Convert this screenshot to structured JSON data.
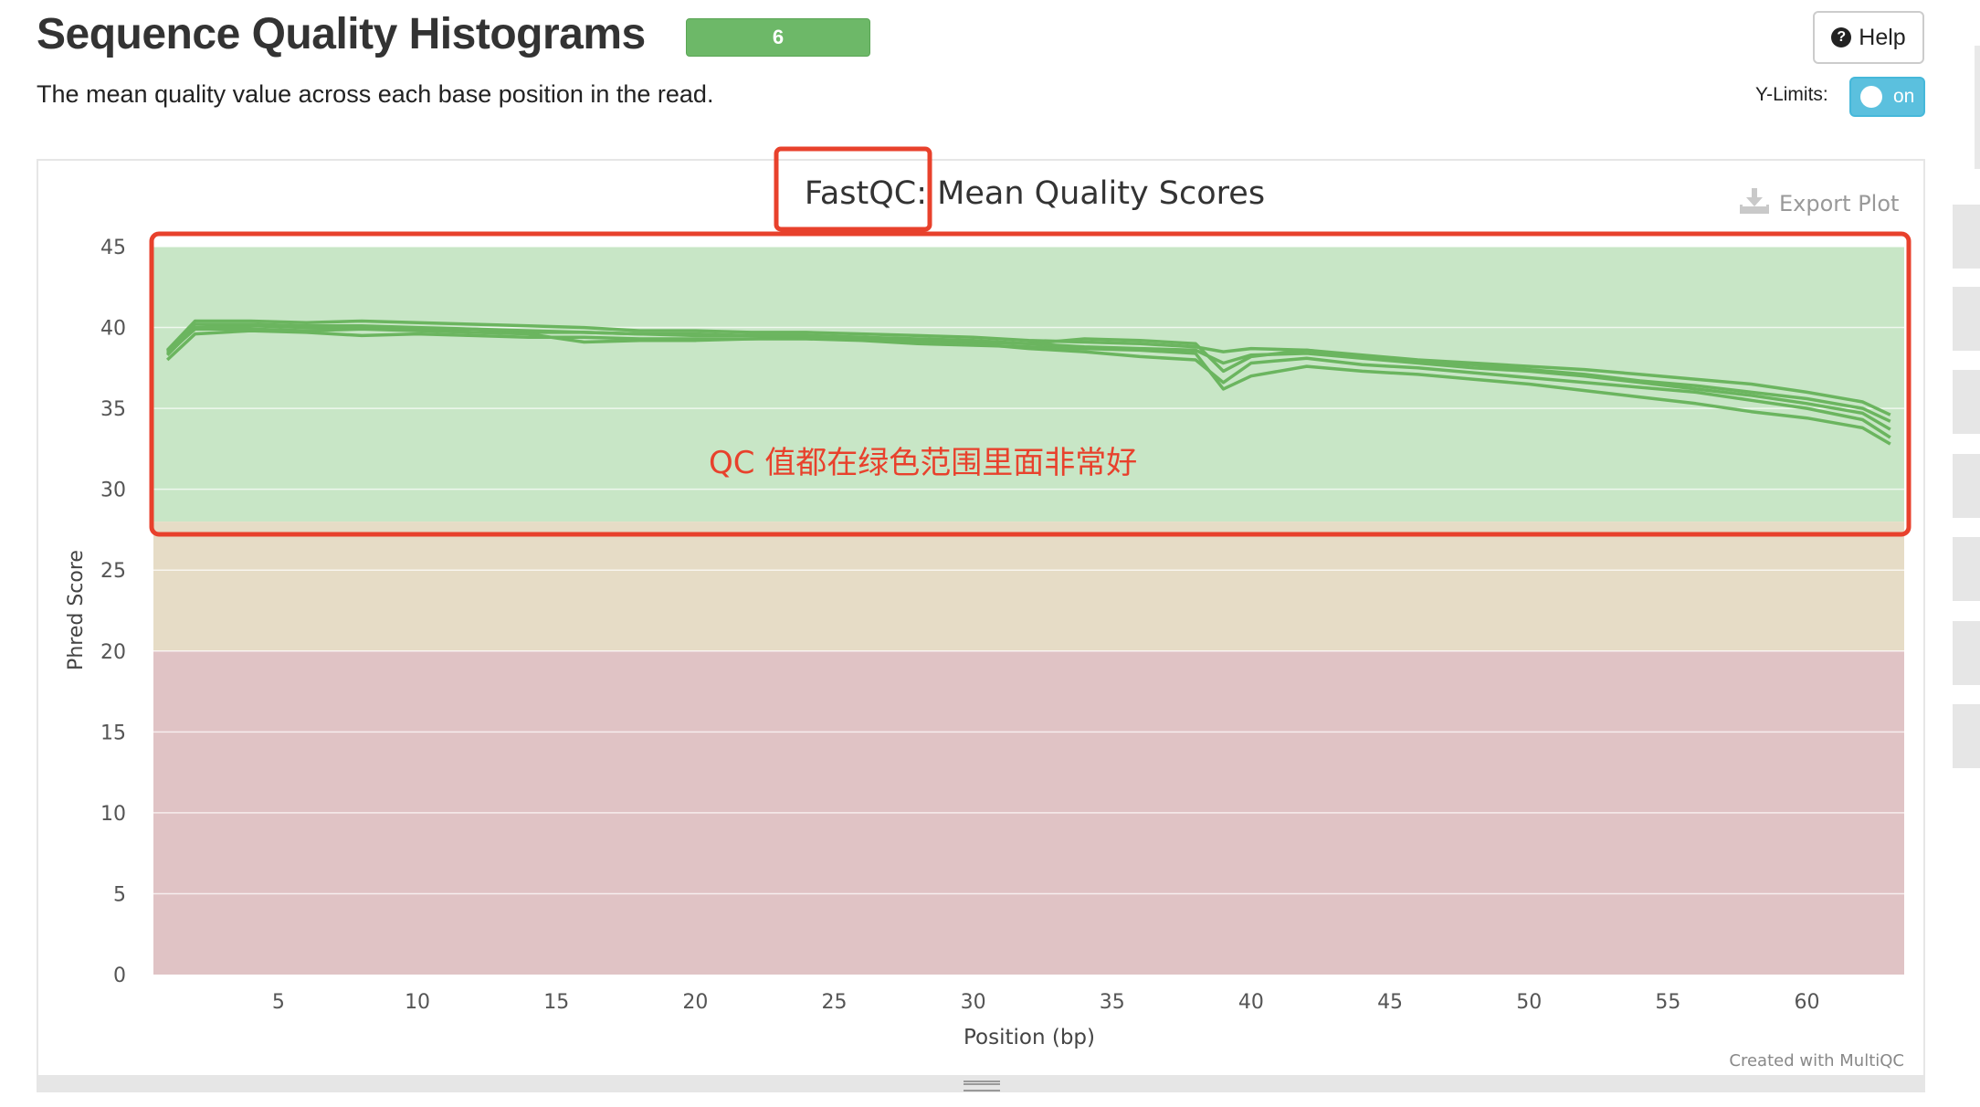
{
  "header": {
    "title": "Sequence Quality Histograms",
    "badge": "6",
    "subtitle": "The mean quality value across each base position in the read.",
    "help_label": "Help",
    "ylimits_label": "Y-Limits:",
    "toggle_label": "on"
  },
  "plot": {
    "export_label": "Export Plot",
    "credit": "Created with MultiQC"
  },
  "annotations": {
    "good_range_note": "QC 值都在绿色范围里面非常好",
    "annotation_color": "#e8412c"
  },
  "colors": {
    "badge": "#6db868",
    "toggle": "#5bc0de",
    "line": "#6bb55f",
    "band_good": "#c8e6c6",
    "band_warn": "#e6dcc6",
    "band_fail": "#e0c3c5"
  },
  "icons": {
    "help": "question-circle-icon",
    "export": "download-icon"
  },
  "chart_data": {
    "type": "line",
    "title": "FastQC: Mean Quality Scores",
    "xlabel": "Position (bp)",
    "ylabel": "Phred Score",
    "xlim": [
      0.5,
      63.5
    ],
    "ylim": [
      0,
      45
    ],
    "xticks": [
      5,
      10,
      15,
      20,
      25,
      30,
      35,
      40,
      45,
      50,
      55,
      60
    ],
    "yticks": [
      0,
      5,
      10,
      15,
      20,
      25,
      30,
      35,
      40,
      45
    ],
    "grid": true,
    "bands": [
      {
        "from": 28,
        "to": 45,
        "level": "good"
      },
      {
        "from": 20,
        "to": 28,
        "level": "warn"
      },
      {
        "from": 0,
        "to": 20,
        "level": "fail"
      }
    ],
    "x": [
      1,
      2,
      4,
      6,
      8,
      10,
      12,
      14,
      16,
      18,
      20,
      22,
      24,
      26,
      28,
      30,
      32,
      34,
      36,
      38,
      39,
      40,
      42,
      44,
      46,
      48,
      50,
      52,
      54,
      56,
      58,
      60,
      62,
      63
    ],
    "series": [
      {
        "values": [
          38.6,
          40.4,
          40.4,
          40.3,
          40.4,
          40.3,
          40.2,
          40.1,
          40.0,
          39.8,
          39.8,
          39.7,
          39.7,
          39.6,
          39.5,
          39.4,
          39.2,
          39.1,
          39.0,
          38.8,
          38.5,
          38.7,
          38.6,
          38.3,
          38.0,
          37.8,
          37.6,
          37.4,
          37.1,
          36.8,
          36.5,
          36.0,
          35.4,
          34.6
        ]
      },
      {
        "values": [
          38.3,
          40.0,
          40.1,
          40.0,
          40.0,
          39.9,
          39.9,
          39.7,
          39.7,
          39.6,
          39.5,
          39.5,
          39.5,
          39.4,
          39.2,
          39.1,
          39.0,
          39.3,
          39.2,
          39.0,
          37.3,
          38.2,
          38.6,
          38.2,
          37.9,
          37.7,
          37.4,
          37.1,
          36.7,
          36.4,
          36.0,
          35.6,
          35.0,
          34.2
        ]
      },
      {
        "values": [
          38.0,
          39.6,
          39.8,
          39.7,
          39.5,
          39.6,
          39.5,
          39.4,
          39.4,
          39.3,
          39.3,
          39.3,
          39.3,
          39.2,
          39.0,
          38.9,
          38.8,
          38.7,
          38.6,
          38.4,
          36.2,
          37.0,
          37.6,
          37.3,
          37.1,
          36.8,
          36.5,
          36.1,
          35.7,
          35.3,
          34.8,
          34.4,
          33.8,
          32.8
        ]
      },
      {
        "values": [
          38.4,
          39.9,
          39.9,
          39.8,
          39.9,
          39.8,
          39.7,
          39.6,
          39.1,
          39.2,
          39.2,
          39.3,
          39.4,
          39.3,
          39.1,
          39.0,
          38.7,
          38.5,
          38.2,
          38.0,
          36.6,
          37.8,
          38.1,
          37.7,
          37.5,
          37.2,
          36.9,
          36.6,
          36.3,
          36.0,
          35.5,
          35.0,
          34.3,
          33.2
        ]
      },
      {
        "values": [
          38.5,
          40.2,
          40.2,
          40.1,
          40.1,
          40.0,
          39.9,
          39.8,
          39.7,
          39.6,
          39.6,
          39.5,
          39.5,
          39.4,
          39.3,
          39.2,
          39.0,
          38.8,
          38.7,
          38.6,
          37.8,
          38.3,
          38.4,
          38.1,
          37.8,
          37.5,
          37.3,
          37.0,
          36.6,
          36.2,
          35.8,
          35.3,
          34.7,
          33.7
        ]
      }
    ]
  }
}
